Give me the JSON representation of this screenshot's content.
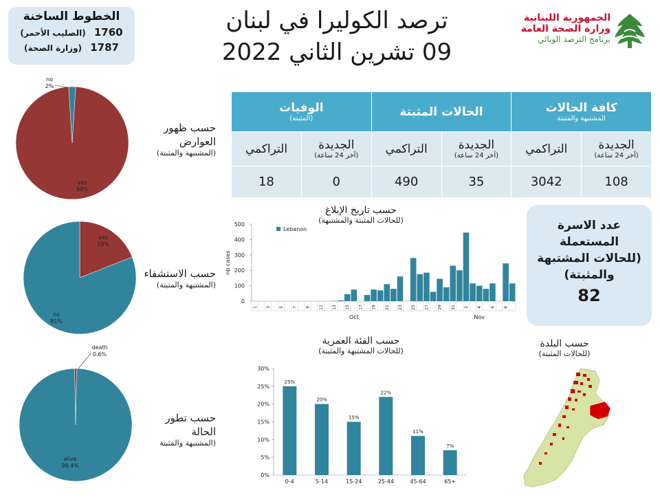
{
  "hotlines": {
    "title": "الخطوط الساخنة",
    "lines": [
      {
        "number": "1760",
        "label": "(الصليب الأحمر)"
      },
      {
        "number": "1787",
        "label": "(وزارة الصحة)"
      }
    ]
  },
  "header": {
    "title_line1": "ترصد الكوليرا في لبنان",
    "title_line2": "09 تشرين الثاني 2022"
  },
  "logo": {
    "line1": "الجمهورية اللبنانية",
    "line2": "وزارة الصحة العامة",
    "line3": "برنامج الترصد الوبائي",
    "icon": "cedar-icon",
    "colors": {
      "red": "#c8102e",
      "green": "#3b8a3b"
    }
  },
  "stats_table": {
    "groups": [
      {
        "title": "كافة الحالات",
        "subtitle": "المشتبهة والمثبتة"
      },
      {
        "title": "الحالات المثبتة",
        "subtitle": ""
      },
      {
        "title": "الوفيات",
        "subtitle": "(المثبتة)"
      }
    ],
    "new_label": "الجديدة",
    "new_sub": "(آخر 24 ساعة)",
    "cum_label": "التراكمي",
    "values": {
      "all_new": "108",
      "all_cum": "3042",
      "conf_new": "35",
      "conf_cum": "490",
      "death_new": "0",
      "death_cum": "18"
    }
  },
  "households": {
    "label": "عدد الاسرة المستعملة (للحالات المشتبهة والمثبتة)",
    "value": "82"
  },
  "labels": {
    "symptoms": {
      "main1": "حسب ظهور",
      "main2": "العوارض",
      "sub": "(المشتبهة والمثبتة)"
    },
    "hosp": {
      "main1": "حسب الاستشفاء",
      "sub": "(المشتبهة والمثبتة)"
    },
    "outcome": {
      "main1": "حسب تطور",
      "main2": "الحالة",
      "sub": "(المشتبهة والمثبتة"
    },
    "report": {
      "main": "حسب تاريخ الإبلاغ",
      "sub": "(للحالات المثبتة والمشتبهة)"
    },
    "age": {
      "main": "حسب الفئة العمرية",
      "sub": "(للحالات المشتبهة والمثبتة)"
    },
    "town": {
      "main": "حسب البلدة",
      "sub": "(للحالات المثبتة)"
    }
  },
  "colors": {
    "teal": "#31849b",
    "red": "#953735",
    "header": "#4aaccc",
    "light": "#dde9f1",
    "box": "#dbe9f4",
    "map_green": "#d7e4a6",
    "map_red": "#d00000"
  },
  "chart_data": [
    {
      "type": "pie",
      "slices": [
        {
          "label": "yes",
          "value": 98,
          "display": "98%",
          "color": "#953735"
        },
        {
          "label": "no",
          "value": 2,
          "display": "2%",
          "color": "#31849b"
        }
      ]
    },
    {
      "type": "pie",
      "slices": [
        {
          "label": "yes",
          "value": 19,
          "display": "19%",
          "color": "#953735"
        },
        {
          "label": "no",
          "value": 81,
          "display": "81%",
          "color": "#31849b"
        }
      ]
    },
    {
      "type": "pie",
      "slices": [
        {
          "label": "death",
          "value": 0.6,
          "display": "0.6%",
          "color": "#953735"
        },
        {
          "label": "alive",
          "value": 99.4,
          "display": "99.4%",
          "color": "#31849b"
        }
      ]
    },
    {
      "type": "bar",
      "ylabel": "nb cases",
      "ylim": [
        0,
        500
      ],
      "yticks": [
        0,
        100,
        200,
        300,
        400,
        500
      ],
      "legend": "Lebanon",
      "tick_labels": [
        "1",
        "3",
        "5",
        "7",
        "9",
        "11",
        "13",
        "15",
        "17",
        "19",
        "21",
        "23",
        "25",
        "27",
        "29",
        "31",
        "2",
        "4",
        "6",
        "8"
      ],
      "month_labels": [
        {
          "label": "Oct",
          "at_day": 16
        },
        {
          "label": "Nov",
          "at_day": 35
        }
      ],
      "values": [
        0,
        0,
        0,
        0,
        0,
        0,
        0,
        0,
        0,
        0,
        0,
        0,
        2,
        5,
        45,
        75,
        0,
        40,
        75,
        70,
        110,
        80,
        160,
        0,
        280,
        175,
        185,
        60,
        145,
        90,
        230,
        200,
        445,
        115,
        100,
        80,
        115,
        0,
        245,
        115
      ],
      "series_color": "#31849b"
    },
    {
      "type": "bar",
      "categories": [
        "0-4",
        "5-14",
        "15-24",
        "25-44",
        "45-64",
        "65+"
      ],
      "values": [
        25,
        20,
        15,
        22,
        11,
        7
      ],
      "value_labels": [
        "25%",
        "20%",
        "15%",
        "22%",
        "11%",
        "7%"
      ],
      "ylim": [
        0,
        30
      ],
      "yticks": [
        "0%",
        "5%",
        "10%",
        "15%",
        "20%",
        "25%",
        "30%"
      ],
      "series_color": "#31849b"
    }
  ]
}
